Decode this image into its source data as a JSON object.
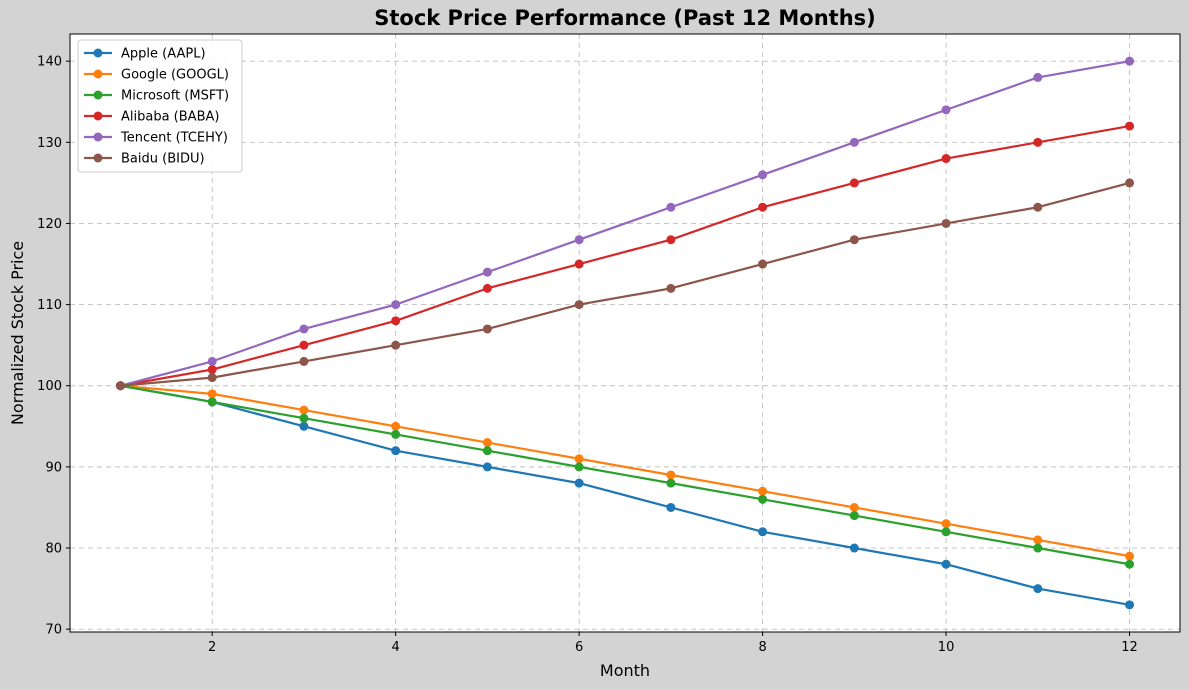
{
  "chart_data": {
    "type": "line",
    "title": "Stock Price Performance (Past 12 Months)",
    "xlabel": "Month",
    "ylabel": "Normalized Stock Price",
    "xlim": [
      0.45,
      12.55
    ],
    "ylim": [
      69.65,
      143.35
    ],
    "xticks": [
      2,
      4,
      6,
      8,
      10,
      12
    ],
    "yticks": [
      70,
      80,
      90,
      100,
      110,
      120,
      130,
      140
    ],
    "grid": true,
    "legend_position": "top-left",
    "x": [
      1,
      2,
      3,
      4,
      5,
      6,
      7,
      8,
      9,
      10,
      11,
      12
    ],
    "series": [
      {
        "name": "Apple (AAPL)",
        "color": "#1f77b4",
        "values": [
          100,
          98,
          95,
          92,
          90,
          88,
          85,
          82,
          80,
          78,
          75,
          73
        ]
      },
      {
        "name": "Google (GOOGL)",
        "color": "#ff7f0e",
        "values": [
          100,
          99,
          97,
          95,
          93,
          91,
          89,
          87,
          85,
          83,
          81,
          79
        ]
      },
      {
        "name": "Microsoft (MSFT)",
        "color": "#2ca02c",
        "values": [
          100,
          98,
          96,
          94,
          92,
          90,
          88,
          86,
          84,
          82,
          80,
          78
        ]
      },
      {
        "name": "Alibaba (BABA)",
        "color": "#d62728",
        "values": [
          100,
          102,
          105,
          108,
          112,
          115,
          118,
          122,
          125,
          128,
          130,
          132
        ]
      },
      {
        "name": "Tencent (TCEHY)",
        "color": "#9467bd",
        "values": [
          100,
          103,
          107,
          110,
          114,
          118,
          122,
          126,
          130,
          134,
          138,
          140
        ]
      },
      {
        "name": "Baidu (BIDU)",
        "color": "#8c564b",
        "values": [
          100,
          101,
          103,
          105,
          107,
          110,
          112,
          115,
          118,
          120,
          122,
          125
        ]
      }
    ]
  }
}
